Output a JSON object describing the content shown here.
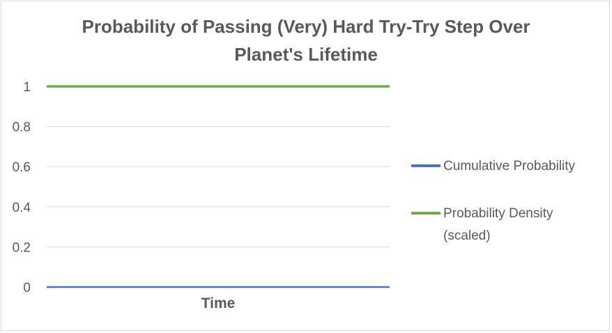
{
  "chart_data": {
    "type": "line",
    "title_lines": [
      "Probability of Passing (Very) Hard Try-Try Step Over",
      "Planet's Lifetime"
    ],
    "xlabel": "Time",
    "ylabel": "",
    "ylim": [
      0,
      1
    ],
    "yticks": [
      "0",
      "0.2",
      "0.4",
      "0.6",
      "0.8",
      "1"
    ],
    "x": [
      0,
      1,
      2
    ],
    "grid": true,
    "legend_position": "right",
    "series": [
      {
        "name": "Cumulative Probability",
        "values": [
          0,
          0,
          0
        ],
        "color": "#4472c4"
      },
      {
        "name": "Probability Density (scaled)",
        "name_lines": [
          "Probability Density",
          "(scaled)"
        ],
        "values": [
          1,
          1,
          1
        ],
        "color": "#70ad47"
      }
    ]
  }
}
